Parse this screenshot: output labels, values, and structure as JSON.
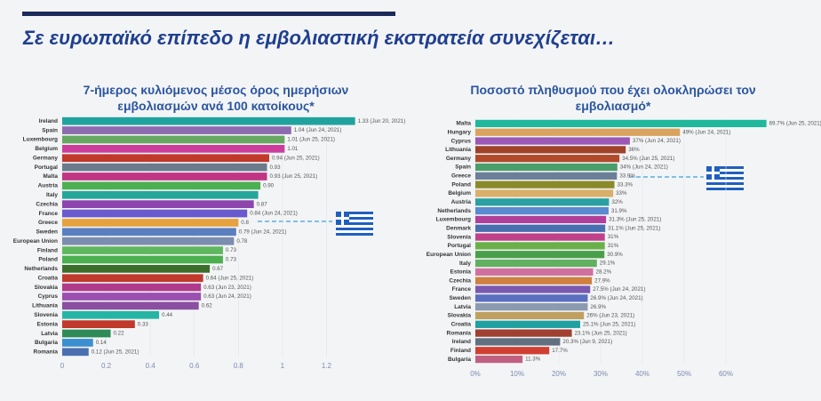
{
  "headline": "Σε ευρωπαϊκό επίπεδο η εμβολιαστική εκστρατεία συνεχίζεται…",
  "chart_data": [
    {
      "type": "hbar",
      "title": "7-ήμερος κυλιόμενος μέσος όρος ημερήσιων εμβολιασμών ανά 100 κατοίκους*",
      "categories": [
        "Ireland",
        "Spain",
        "Luxembourg",
        "Belgium",
        "Germany",
        "Portugal",
        "Malta",
        "Austria",
        "Italy",
        "Czechia",
        "France",
        "Greece",
        "Sweden",
        "European Union",
        "Finland",
        "Poland",
        "Netherlands",
        "Croatia",
        "Slovakia",
        "Cyprus",
        "Lithuania",
        "Slovenia",
        "Estonia",
        "Latvia",
        "Bulgaria",
        "Romania"
      ],
      "values": [
        1.33,
        1.04,
        1.01,
        1.01,
        0.94,
        0.93,
        0.93,
        0.9,
        0.89,
        0.87,
        0.84,
        0.8,
        0.79,
        0.78,
        0.73,
        0.73,
        0.67,
        0.64,
        0.63,
        0.63,
        0.62,
        0.44,
        0.33,
        0.22,
        0.14,
        0.12
      ],
      "value_labels": [
        "1.33 (Jun 20, 2021)",
        "1.04 (Jun 24, 2021)",
        "1.01 (Jun 25, 2021)",
        "1.01",
        "0.94 (Jun 25, 2021)",
        "0.93",
        "0.93 (Jun 25, 2021)",
        "0.90",
        null,
        "0.87",
        "0.84 (Jun 24, 2021)",
        "0.8",
        "0.79 (Jun 24, 2021)",
        "0.78",
        "0.73",
        "0.73",
        "0.67",
        "0.64 (Jun 25, 2021)",
        "0.63 (Jun 23, 2021)",
        "0.63 (Jun 24, 2021)",
        "0.62",
        "0.44",
        "0.33",
        "0.22",
        "0.14",
        "0.12 (Jun 25, 2021)"
      ],
      "colors": [
        "#20a39e",
        "#8e6bb0",
        "#66a861",
        "#cc3d9b",
        "#c0392b",
        "#6b7b8c",
        "#c13584",
        "#4caf50",
        "#26a69a",
        "#8e44ad",
        "#6a5acd",
        "#e6a23c",
        "#5a7fbf",
        "#7b8db0",
        "#5fb85f",
        "#4caf50",
        "#3b6e2a",
        "#c0392b",
        "#b03a8c",
        "#9b4fb0",
        "#8a4fa0",
        "#26b5a5",
        "#c0392b",
        "#2e8b57",
        "#3a8fd0",
        "#4a6fb0"
      ],
      "xlim": [
        0,
        1.4
      ],
      "xticks": [
        0,
        0.2,
        0.4,
        0.6,
        0.8,
        1,
        1.2
      ]
    },
    {
      "type": "hbar",
      "title": "Ποσοστό πληθυσμού που έχει ολοκληρώσει τον εμβολιασμό*",
      "categories": [
        "Malta",
        "Hungary",
        "Cyprus",
        "Lithuania",
        "Germany",
        "Spain",
        "Greece",
        "Poland",
        "Belgium",
        "Austria",
        "Netherlands",
        "Luxembourg",
        "Denmark",
        "Slovenia",
        "Portugal",
        "European Union",
        "Italy",
        "Estonia",
        "Czechia",
        "France",
        "Sweden",
        "Latvia",
        "Slovakia",
        "Croatia",
        "Romania",
        "Ireland",
        "Finland",
        "Bulgaria"
      ],
      "values": [
        69.7,
        49,
        37,
        36,
        34.5,
        34,
        33.9,
        33.3,
        33,
        32,
        31.9,
        31.3,
        31.1,
        31,
        31,
        30.9,
        29.1,
        28.2,
        27.9,
        27.5,
        26.9,
        26.9,
        26,
        25.1,
        23.1,
        20.3,
        17.7,
        11.3
      ],
      "value_labels": [
        "69.7% (Jun 25, 2021)",
        "49% (Jun 24, 2021)",
        "37% (Jun 24, 2021)",
        "36%",
        "34.5% (Jun 25, 2021)",
        "34% (Jun 24, 2021)",
        "33.9%",
        "33.3%",
        "33%",
        "32%",
        "31.9%",
        "31.3% (Jun 25, 2021)",
        "31.1% (Jun 25, 2021)",
        "31%",
        "31%",
        "30.9%",
        "29.1%",
        "28.2%",
        "27.9%",
        "27.5% (Jun 24, 2021)",
        "26.9% (Jun 24, 2021)",
        "26.9%",
        "26% (Jun 23, 2021)",
        "25.1% (Jun 25, 2021)",
        "23.1% (Jun 25, 2021)",
        "20.3% (Jun 9, 2021)",
        "17.7%",
        "11.3%"
      ],
      "colors": [
        "#1fb89c",
        "#d9a35f",
        "#9b59b6",
        "#a0422a",
        "#b04a2a",
        "#4a9e6a",
        "#6b7f99",
        "#8a8a2a",
        "#d9b06a",
        "#2aa0a0",
        "#5a8ad0",
        "#b0409a",
        "#4a6fb0",
        "#c0408a",
        "#6ab04a",
        "#4aa04a",
        "#60b060",
        "#d070a0",
        "#d08040",
        "#7a5ab0",
        "#5a6fc0",
        "#8a9ab0",
        "#c0a060",
        "#20a0a0",
        "#a04030",
        "#607080",
        "#d04030",
        "#c06080"
      ],
      "xlim": [
        0,
        70
      ],
      "xticks": [
        {
          "value": 0,
          "label": "0%"
        },
        {
          "value": 10,
          "label": "10%"
        },
        {
          "value": 20,
          "label": "20%"
        },
        {
          "value": 30,
          "label": "30%"
        },
        {
          "value": 40,
          "label": "40%"
        },
        {
          "value": 50,
          "label": "50%"
        },
        {
          "value": 60,
          "label": "60%"
        }
      ]
    }
  ]
}
